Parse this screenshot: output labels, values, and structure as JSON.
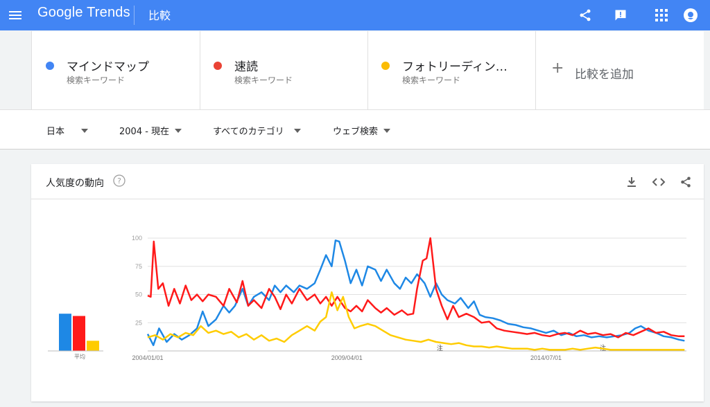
{
  "header": {
    "logo": "Google Trends",
    "page_title": "比較"
  },
  "terms": [
    {
      "name": "マインドマップ",
      "subtitle": "検索キーワード",
      "color": "#4285f4"
    },
    {
      "name": "速読",
      "subtitle": "検索キーワード",
      "color": "#ea4335"
    },
    {
      "name": "フォトリーディン…",
      "subtitle": "検索キーワード",
      "color": "#fbbc04"
    }
  ],
  "add_compare": {
    "plus": "+",
    "label": "比較を追加"
  },
  "filters": {
    "region": "日本",
    "period": "2004 - 現在",
    "category": "すべてのカテゴリ",
    "search_type": "ウェブ検索"
  },
  "panel": {
    "title": "人気度の動向"
  },
  "chart_data": {
    "type": "line",
    "ylim": [
      0,
      100
    ],
    "y_ticks": [
      25,
      50,
      75,
      100
    ],
    "x_tick_labels": [
      {
        "label": "2004/01/01",
        "at": 2004.0
      },
      {
        "label": "2009/04/01",
        "at": 2009.25
      },
      {
        "label": "2014/07/01",
        "at": 2014.5
      }
    ],
    "x_range": [
      2004.0,
      2018.2
    ],
    "notes": [
      {
        "label": "注",
        "at": 2011.7
      },
      {
        "label": "注",
        "at": 2016.0
      }
    ],
    "average": {
      "label": "平均",
      "values": [
        {
          "color": "#1e88e5",
          "value": 33
        },
        {
          "color": "#ff1a1a",
          "value": 31
        },
        {
          "color": "#ffcc00",
          "value": 9
        }
      ]
    },
    "series": [
      {
        "name": "マインドマップ",
        "color": "#1e88e5",
        "points": [
          [
            2004.0,
            15
          ],
          [
            2004.15,
            5
          ],
          [
            2004.3,
            20
          ],
          [
            2004.5,
            8
          ],
          [
            2004.7,
            15
          ],
          [
            2004.9,
            10
          ],
          [
            2005.1,
            14
          ],
          [
            2005.3,
            20
          ],
          [
            2005.45,
            35
          ],
          [
            2005.6,
            22
          ],
          [
            2005.8,
            28
          ],
          [
            2006.0,
            40
          ],
          [
            2006.15,
            34
          ],
          [
            2006.3,
            40
          ],
          [
            2006.5,
            55
          ],
          [
            2006.65,
            40
          ],
          [
            2006.8,
            48
          ],
          [
            2007.0,
            52
          ],
          [
            2007.2,
            45
          ],
          [
            2007.35,
            58
          ],
          [
            2007.5,
            52
          ],
          [
            2007.65,
            58
          ],
          [
            2007.85,
            52
          ],
          [
            2008.0,
            58
          ],
          [
            2008.2,
            55
          ],
          [
            2008.4,
            60
          ],
          [
            2008.55,
            72
          ],
          [
            2008.7,
            85
          ],
          [
            2008.85,
            75
          ],
          [
            2008.95,
            98
          ],
          [
            2009.05,
            97
          ],
          [
            2009.2,
            80
          ],
          [
            2009.35,
            60
          ],
          [
            2009.5,
            72
          ],
          [
            2009.65,
            58
          ],
          [
            2009.8,
            75
          ],
          [
            2010.0,
            72
          ],
          [
            2010.15,
            62
          ],
          [
            2010.3,
            72
          ],
          [
            2010.5,
            60
          ],
          [
            2010.65,
            55
          ],
          [
            2010.8,
            65
          ],
          [
            2010.95,
            60
          ],
          [
            2011.1,
            68
          ],
          [
            2011.3,
            60
          ],
          [
            2011.45,
            48
          ],
          [
            2011.6,
            60
          ],
          [
            2011.75,
            50
          ],
          [
            2011.9,
            45
          ],
          [
            2012.1,
            42
          ],
          [
            2012.25,
            47
          ],
          [
            2012.45,
            38
          ],
          [
            2012.6,
            44
          ],
          [
            2012.75,
            32
          ],
          [
            2012.9,
            30
          ],
          [
            2013.1,
            29
          ],
          [
            2013.3,
            27
          ],
          [
            2013.5,
            24
          ],
          [
            2013.7,
            23
          ],
          [
            2013.9,
            21
          ],
          [
            2014.1,
            20
          ],
          [
            2014.3,
            18
          ],
          [
            2014.5,
            16
          ],
          [
            2014.7,
            18
          ],
          [
            2014.9,
            14
          ],
          [
            2015.1,
            16
          ],
          [
            2015.3,
            13
          ],
          [
            2015.5,
            14
          ],
          [
            2015.7,
            12
          ],
          [
            2015.9,
            13
          ],
          [
            2016.1,
            12
          ],
          [
            2016.3,
            13
          ],
          [
            2016.5,
            14
          ],
          [
            2016.7,
            16
          ],
          [
            2016.85,
            20
          ],
          [
            2017.0,
            22
          ],
          [
            2017.2,
            18
          ],
          [
            2017.4,
            16
          ],
          [
            2017.6,
            13
          ],
          [
            2017.8,
            12
          ],
          [
            2018.0,
            10
          ],
          [
            2018.15,
            9
          ]
        ]
      },
      {
        "name": "速読",
        "color": "#ff1a1a",
        "points": [
          [
            2004.0,
            49
          ],
          [
            2004.08,
            48
          ],
          [
            2004.16,
            97
          ],
          [
            2004.28,
            55
          ],
          [
            2004.4,
            60
          ],
          [
            2004.55,
            40
          ],
          [
            2004.7,
            55
          ],
          [
            2004.85,
            42
          ],
          [
            2005.0,
            58
          ],
          [
            2005.15,
            45
          ],
          [
            2005.3,
            50
          ],
          [
            2005.45,
            44
          ],
          [
            2005.6,
            50
          ],
          [
            2005.8,
            48
          ],
          [
            2006.0,
            40
          ],
          [
            2006.15,
            55
          ],
          [
            2006.35,
            43
          ],
          [
            2006.5,
            62
          ],
          [
            2006.65,
            40
          ],
          [
            2006.8,
            45
          ],
          [
            2007.0,
            38
          ],
          [
            2007.2,
            55
          ],
          [
            2007.35,
            48
          ],
          [
            2007.5,
            37
          ],
          [
            2007.65,
            50
          ],
          [
            2007.8,
            42
          ],
          [
            2008.0,
            55
          ],
          [
            2008.2,
            45
          ],
          [
            2008.4,
            50
          ],
          [
            2008.55,
            42
          ],
          [
            2008.7,
            48
          ],
          [
            2008.85,
            40
          ],
          [
            2009.0,
            48
          ],
          [
            2009.2,
            38
          ],
          [
            2009.35,
            35
          ],
          [
            2009.5,
            40
          ],
          [
            2009.65,
            35
          ],
          [
            2009.8,
            45
          ],
          [
            2010.0,
            38
          ],
          [
            2010.15,
            34
          ],
          [
            2010.3,
            38
          ],
          [
            2010.5,
            32
          ],
          [
            2010.7,
            36
          ],
          [
            2010.85,
            32
          ],
          [
            2011.0,
            33
          ],
          [
            2011.1,
            55
          ],
          [
            2011.25,
            80
          ],
          [
            2011.35,
            82
          ],
          [
            2011.45,
            100
          ],
          [
            2011.6,
            55
          ],
          [
            2011.75,
            40
          ],
          [
            2011.9,
            28
          ],
          [
            2012.05,
            40
          ],
          [
            2012.2,
            30
          ],
          [
            2012.4,
            33
          ],
          [
            2012.6,
            30
          ],
          [
            2012.8,
            25
          ],
          [
            2013.0,
            26
          ],
          [
            2013.2,
            20
          ],
          [
            2013.4,
            18
          ],
          [
            2013.6,
            17
          ],
          [
            2013.8,
            16
          ],
          [
            2014.0,
            15
          ],
          [
            2014.2,
            16
          ],
          [
            2014.4,
            14
          ],
          [
            2014.6,
            13
          ],
          [
            2014.8,
            15
          ],
          [
            2015.0,
            16
          ],
          [
            2015.2,
            14
          ],
          [
            2015.4,
            18
          ],
          [
            2015.6,
            15
          ],
          [
            2015.8,
            16
          ],
          [
            2016.0,
            14
          ],
          [
            2016.2,
            15
          ],
          [
            2016.4,
            12
          ],
          [
            2016.6,
            16
          ],
          [
            2016.8,
            14
          ],
          [
            2017.0,
            17
          ],
          [
            2017.2,
            20
          ],
          [
            2017.4,
            16
          ],
          [
            2017.6,
            17
          ],
          [
            2017.8,
            14
          ],
          [
            2018.0,
            13
          ],
          [
            2018.15,
            13
          ]
        ]
      },
      {
        "name": "フォトリーディン…",
        "color": "#ffcc00",
        "points": [
          [
            2004.0,
            12
          ],
          [
            2004.2,
            14
          ],
          [
            2004.4,
            10
          ],
          [
            2004.6,
            15
          ],
          [
            2004.8,
            12
          ],
          [
            2005.0,
            16
          ],
          [
            2005.2,
            14
          ],
          [
            2005.4,
            22
          ],
          [
            2005.6,
            16
          ],
          [
            2005.8,
            18
          ],
          [
            2006.0,
            15
          ],
          [
            2006.2,
            17
          ],
          [
            2006.4,
            12
          ],
          [
            2006.6,
            15
          ],
          [
            2006.8,
            10
          ],
          [
            2007.0,
            14
          ],
          [
            2007.2,
            9
          ],
          [
            2007.4,
            11
          ],
          [
            2007.6,
            8
          ],
          [
            2007.8,
            14
          ],
          [
            2008.0,
            18
          ],
          [
            2008.2,
            22
          ],
          [
            2008.4,
            18
          ],
          [
            2008.55,
            26
          ],
          [
            2008.7,
            30
          ],
          [
            2008.85,
            52
          ],
          [
            2009.0,
            36
          ],
          [
            2009.15,
            48
          ],
          [
            2009.3,
            30
          ],
          [
            2009.45,
            20
          ],
          [
            2009.6,
            22
          ],
          [
            2009.8,
            24
          ],
          [
            2010.0,
            22
          ],
          [
            2010.2,
            18
          ],
          [
            2010.4,
            14
          ],
          [
            2010.6,
            12
          ],
          [
            2010.8,
            10
          ],
          [
            2011.0,
            9
          ],
          [
            2011.2,
            8
          ],
          [
            2011.4,
            10
          ],
          [
            2011.6,
            8
          ],
          [
            2011.8,
            7
          ],
          [
            2012.0,
            6
          ],
          [
            2012.2,
            7
          ],
          [
            2012.4,
            5
          ],
          [
            2012.6,
            4
          ],
          [
            2012.8,
            4
          ],
          [
            2013.0,
            3
          ],
          [
            2013.2,
            4
          ],
          [
            2013.4,
            3
          ],
          [
            2013.6,
            2
          ],
          [
            2013.8,
            2
          ],
          [
            2014.0,
            2
          ],
          [
            2014.2,
            1
          ],
          [
            2014.4,
            2
          ],
          [
            2014.6,
            1
          ],
          [
            2014.8,
            1
          ],
          [
            2015.0,
            1
          ],
          [
            2015.2,
            2
          ],
          [
            2015.4,
            1
          ],
          [
            2015.6,
            2
          ],
          [
            2015.8,
            3
          ],
          [
            2016.0,
            2
          ],
          [
            2016.2,
            1
          ],
          [
            2016.4,
            1
          ],
          [
            2016.6,
            1
          ],
          [
            2016.8,
            1
          ],
          [
            2017.0,
            1
          ],
          [
            2017.2,
            1
          ],
          [
            2017.4,
            1
          ],
          [
            2017.6,
            1
          ],
          [
            2017.8,
            1
          ],
          [
            2018.0,
            1
          ],
          [
            2018.15,
            1
          ]
        ]
      }
    ]
  }
}
